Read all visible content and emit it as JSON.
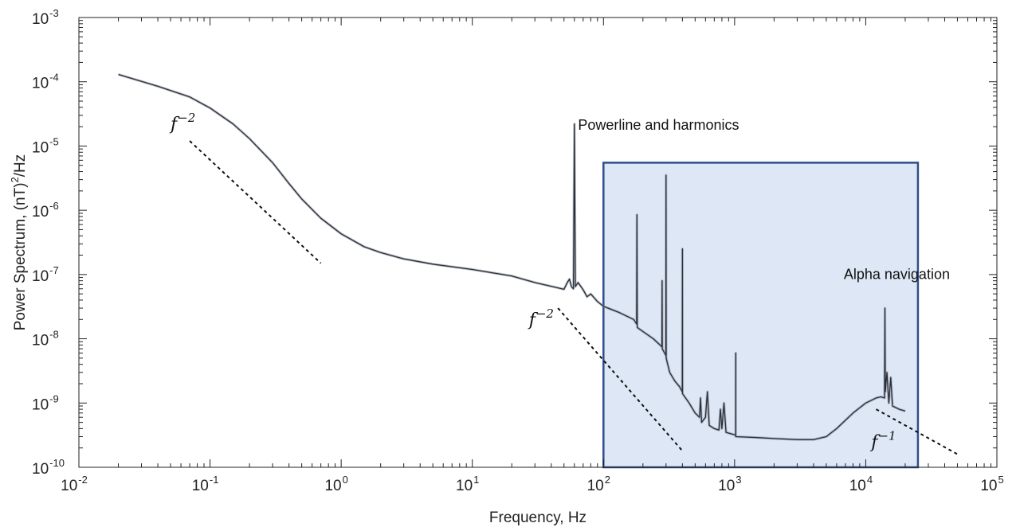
{
  "chart_data": {
    "type": "line",
    "xscale": "log",
    "yscale": "log",
    "xlim": [
      0.01,
      100000
    ],
    "ylim": [
      1e-10,
      0.001
    ],
    "xlabel": "Frequency, Hz",
    "ylabel": "Power Spectrum, (nT)",
    "ylabel_exp": "2",
    "ylabel_tail": "/Hz",
    "x_ticks": [
      {
        "base": "10",
        "exp": "-2",
        "value": 0.01
      },
      {
        "base": "10",
        "exp": "-1",
        "value": 0.1
      },
      {
        "base": "10",
        "exp": "0",
        "value": 1
      },
      {
        "base": "10",
        "exp": "1",
        "value": 10
      },
      {
        "base": "10",
        "exp": "2",
        "value": 100
      },
      {
        "base": "10",
        "exp": "3",
        "value": 1000
      },
      {
        "base": "10",
        "exp": "4",
        "value": 10000
      },
      {
        "base": "10",
        "exp": "5",
        "value": 100000
      }
    ],
    "y_ticks": [
      {
        "base": "10",
        "exp": "-3",
        "value": 0.001
      },
      {
        "base": "10",
        "exp": "-4",
        "value": 0.0001
      },
      {
        "base": "10",
        "exp": "-5",
        "value": 1e-05
      },
      {
        "base": "10",
        "exp": "-6",
        "value": 1e-06
      },
      {
        "base": "10",
        "exp": "-7",
        "value": 1e-07
      },
      {
        "base": "10",
        "exp": "-8",
        "value": 1e-08
      },
      {
        "base": "10",
        "exp": "-9",
        "value": 1e-09
      },
      {
        "base": "10",
        "exp": "-10",
        "value": 1e-10
      }
    ],
    "grid": false,
    "series": [
      {
        "color": "#2a2f3a",
        "points": [
          [
            0.02,
            0.00013
          ],
          [
            0.04,
            8.5e-05
          ],
          [
            0.07,
            5.8e-05
          ],
          [
            0.1,
            3.9e-05
          ],
          [
            0.15,
            2.2e-05
          ],
          [
            0.2,
            1.3e-05
          ],
          [
            0.3,
            5.5e-06
          ],
          [
            0.4,
            2.6e-06
          ],
          [
            0.5,
            1.5e-06
          ],
          [
            0.7,
            7.5e-07
          ],
          [
            1.0,
            4.3e-07
          ],
          [
            1.5,
            2.7e-07
          ],
          [
            2.0,
            2.2e-07
          ],
          [
            3.0,
            1.75e-07
          ],
          [
            5.0,
            1.45e-07
          ],
          [
            10.0,
            1.2e-07
          ],
          [
            20.0,
            9.5e-08
          ],
          [
            30.0,
            7.5e-08
          ],
          [
            45.0,
            6.2e-08
          ],
          [
            50.0,
            5.9e-08
          ],
          [
            53.0,
            7.5e-08
          ],
          [
            55.0,
            8.5e-08
          ],
          [
            57.0,
            6.5e-08
          ],
          [
            59.0,
            6e-08
          ],
          [
            60.0,
            2.2e-05
          ],
          [
            61.0,
            6.5e-08
          ],
          [
            64.0,
            7.5e-08
          ],
          [
            70.0,
            5.8e-08
          ],
          [
            75.0,
            4.5e-08
          ],
          [
            80.0,
            5e-08
          ],
          [
            90.0,
            3.8e-08
          ],
          [
            100.0,
            3.2e-08
          ],
          [
            130.0,
            2.6e-08
          ],
          [
            170.0,
            2e-08
          ],
          [
            179.0,
            1.7e-08
          ],
          [
            180.0,
            8.5e-07
          ],
          [
            181.0,
            1.5e-08
          ],
          [
            200.0,
            1.3e-08
          ],
          [
            240.0,
            1e-08
          ],
          [
            270.0,
            8e-09
          ],
          [
            279.0,
            7.5e-09
          ],
          [
            280.0,
            8e-08
          ],
          [
            281.0,
            7e-09
          ],
          [
            299.0,
            5.5e-09
          ],
          [
            300.0,
            3.5e-06
          ],
          [
            301.0,
            5e-09
          ],
          [
            320.0,
            3e-09
          ],
          [
            350.0,
            2.2e-09
          ],
          [
            380.0,
            1.8e-09
          ],
          [
            399.0,
            1.5e-09
          ],
          [
            400.0,
            2.5e-07
          ],
          [
            401.0,
            1.4e-09
          ],
          [
            450.0,
            1e-09
          ],
          [
            500.0,
            7e-10
          ],
          [
            540.0,
            6e-10
          ],
          [
            550.0,
            1.2e-09
          ],
          [
            560.0,
            5e-10
          ],
          [
            600.0,
            6e-10
          ],
          [
            620.0,
            1.5e-09
          ],
          [
            640.0,
            4.5e-10
          ],
          [
            700.0,
            4e-10
          ],
          [
            760.0,
            3.8e-10
          ],
          [
            780.0,
            8e-10
          ],
          [
            800.0,
            4e-10
          ],
          [
            830.0,
            1e-09
          ],
          [
            860.0,
            3.5e-10
          ],
          [
            1000.0,
            3.2e-10
          ],
          [
            1019.0,
            3.2e-10
          ],
          [
            1020.0,
            6e-09
          ],
          [
            1021.0,
            3e-10
          ],
          [
            1500.0,
            2.9e-10
          ],
          [
            2000.0,
            2.8e-10
          ],
          [
            3000.0,
            2.7e-10
          ],
          [
            4000.0,
            2.7e-10
          ],
          [
            5000.0,
            3e-10
          ],
          [
            6000.0,
            4e-10
          ],
          [
            8000.0,
            7e-10
          ],
          [
            10000.0,
            1e-09
          ],
          [
            12000.0,
            1.2e-09
          ],
          [
            13000.0,
            1.25e-09
          ],
          [
            13900.0,
            1.2e-09
          ],
          [
            14000.0,
            3e-08
          ],
          [
            14100.0,
            1.5e-09
          ],
          [
            14500.0,
            3e-09
          ],
          [
            15000.0,
            1e-09
          ],
          [
            15500.0,
            2.5e-09
          ],
          [
            16000.0,
            9e-10
          ],
          [
            18000.0,
            8e-10
          ],
          [
            20000.0,
            7.5e-10
          ]
        ]
      }
    ],
    "shaded_region": {
      "x": [
        100,
        25000
      ],
      "y": [
        1e-10,
        5.5e-06
      ],
      "fill": "#dde7f5",
      "stroke": "#2e4e8c"
    },
    "reference_lines": [
      {
        "label": "f",
        "exp": "−2",
        "from": [
          0.07,
          1.2e-05
        ],
        "to": [
          0.7,
          1.5e-07
        ],
        "label_at": [
          0.05,
          1.8e-05
        ]
      },
      {
        "label": "f",
        "exp": "−2",
        "from": [
          45,
          3e-08
        ],
        "to": [
          400,
          1.8e-10
        ],
        "label_at": [
          27,
          1.6e-08
        ]
      },
      {
        "label": "f",
        "exp": "−1",
        "from": [
          12000,
          8e-10
        ],
        "to": [
          50000,
          1.6e-10
        ],
        "label_at": [
          11000,
          2e-10
        ]
      }
    ],
    "annotations": [
      {
        "text": "Powerline and harmonics",
        "at": [
          64,
          1.8e-05
        ]
      },
      {
        "text": "Alpha navigation",
        "at": [
          6800,
          8.5e-08
        ]
      }
    ]
  }
}
